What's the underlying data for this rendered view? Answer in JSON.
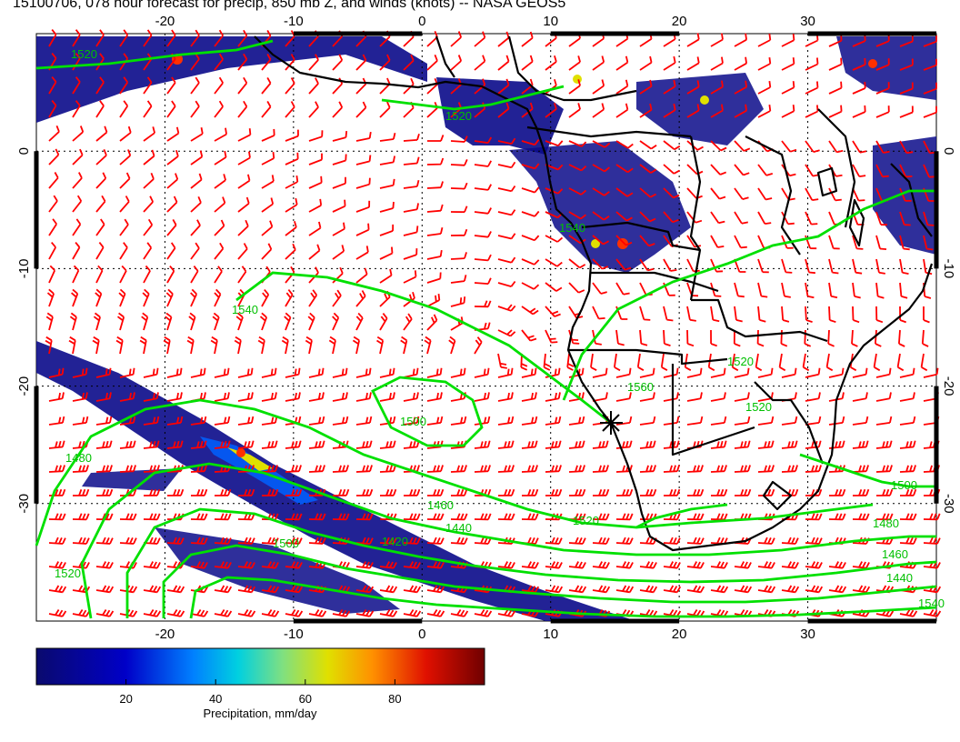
{
  "title": "15100706, 078 hour forecast for precip, 850 mb Z, and winds (knots) -- NASA GEOS5",
  "map": {
    "lon_range": [
      -30,
      40
    ],
    "lat_range": [
      -40,
      10
    ],
    "lon_ticks": [
      -20,
      -10,
      0,
      10,
      20,
      30
    ],
    "lat_ticks": [
      0,
      -10,
      -20,
      -30
    ],
    "contour_labels": [
      "1520",
      "1520",
      "1520",
      "1540",
      "1500",
      "1480",
      "1460",
      "1440",
      "1420",
      "1500",
      "1520",
      "1520",
      "1540",
      "1560",
      "1520",
      "1500",
      "1480",
      "1460",
      "1440",
      "1540"
    ],
    "colors": {
      "frame": "#000000",
      "contours": "#00e000",
      "winds": "#ff0000",
      "land": "#000000"
    }
  },
  "colorbar": {
    "label": "Precipitation, mm/day",
    "ticks": [
      "20",
      "40",
      "60",
      "80"
    ],
    "range": [
      0,
      100
    ],
    "colors": [
      "#0a0a6e",
      "#0000c8",
      "#0060ff",
      "#00c8e6",
      "#60e6a0",
      "#c8e600",
      "#ffc800",
      "#ff6400",
      "#dc1400",
      "#780000"
    ]
  }
}
